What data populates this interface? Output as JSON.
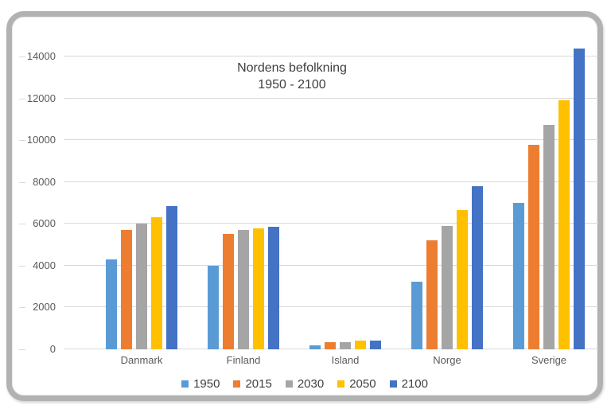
{
  "chart_data": {
    "type": "bar",
    "title": "Nordens befolkning",
    "subtitle": "1950 - 2100",
    "xlabel": "",
    "ylabel": "",
    "categories": [
      "Danmark",
      "Finland",
      "Island",
      "Norge",
      "Sverige"
    ],
    "series": [
      {
        "name": "1950",
        "color": "#5B9BD5",
        "values": [
          4300,
          4000,
          180,
          3250,
          7000
        ]
      },
      {
        "name": "2015",
        "color": "#ED7D31",
        "values": [
          5700,
          5500,
          330,
          5200,
          9800
        ]
      },
      {
        "name": "2030",
        "color": "#A5A5A5",
        "values": [
          6000,
          5720,
          350,
          5900,
          10750
        ]
      },
      {
        "name": "2050",
        "color": "#FFC000",
        "values": [
          6300,
          5780,
          420,
          6650,
          11900
        ]
      },
      {
        "name": "2100",
        "color": "#4472C4",
        "values": [
          6850,
          5850,
          430,
          7800,
          14400
        ]
      }
    ],
    "ylim": [
      0,
      14500
    ],
    "yticks": [
      0,
      2000,
      4000,
      6000,
      8000,
      10000,
      12000,
      14000
    ],
    "grid": true,
    "legend_position": "bottom"
  },
  "colors": {
    "gridline": "#d9d9d9",
    "axis_text": "#595959",
    "title_text": "#3f3f3f",
    "legend_text": "#404040",
    "frame_border": "#b2b2b2",
    "background": "#ffffff"
  }
}
